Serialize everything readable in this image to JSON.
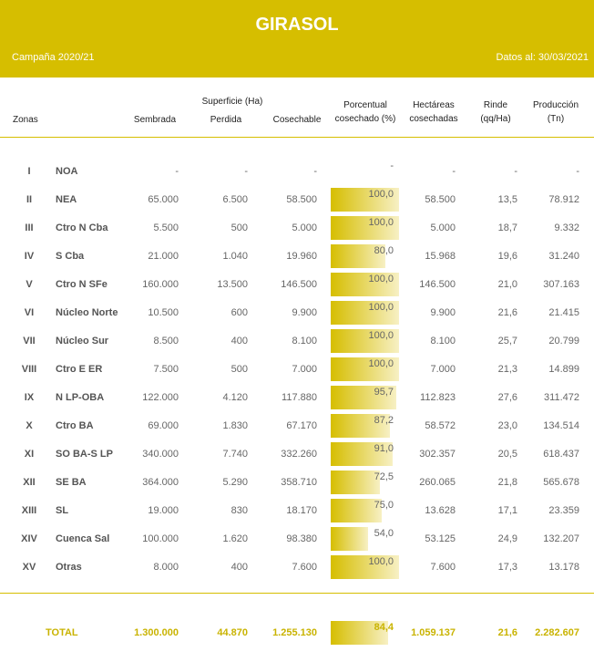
{
  "header": {
    "title": "GIRASOL",
    "campaign": "Campaña 2020/21",
    "date": "Datos al: 30/03/2021"
  },
  "table": {
    "group_header": "Superficie (Ha)",
    "columns": [
      "Zonas",
      "Sembrada",
      "Perdida",
      "Cosechable",
      "Porcentual cosechado (%)",
      "Hectáreas cosechadas",
      "Rinde (qq/Ha)",
      "Producción (Tn)"
    ],
    "rows": [
      [
        "I",
        "NOA",
        "-",
        "-",
        "-",
        "-",
        "-",
        "-",
        "-"
      ],
      [
        "II",
        "NEA",
        "65.000",
        "6.500",
        "58.500",
        "100,0",
        "58.500",
        "13,5",
        "78.912"
      ],
      [
        "III",
        "Ctro N Cba",
        "5.500",
        "500",
        "5.000",
        "100,0",
        "5.000",
        "18,7",
        "9.332"
      ],
      [
        "IV",
        "S Cba",
        "21.000",
        "1.040",
        "19.960",
        "80,0",
        "15.968",
        "19,6",
        "31.240"
      ],
      [
        "V",
        "Ctro N SFe",
        "160.000",
        "13.500",
        "146.500",
        "100,0",
        "146.500",
        "21,0",
        "307.163"
      ],
      [
        "VI",
        "Núcleo Norte",
        "10.500",
        "600",
        "9.900",
        "100,0",
        "9.900",
        "21,6",
        "21.415"
      ],
      [
        "VII",
        "Núcleo Sur",
        "8.500",
        "400",
        "8.100",
        "100,0",
        "8.100",
        "25,7",
        "20.799"
      ],
      [
        "VIII",
        "Ctro E ER",
        "7.500",
        "500",
        "7.000",
        "100,0",
        "7.000",
        "21,3",
        "14.899"
      ],
      [
        "IX",
        "N LP-OBA",
        "122.000",
        "4.120",
        "117.880",
        "95,7",
        "112.823",
        "27,6",
        "311.472"
      ],
      [
        "X",
        "Ctro BA",
        "69.000",
        "1.830",
        "67.170",
        "87,2",
        "58.572",
        "23,0",
        "134.514"
      ],
      [
        "XI",
        "SO BA-S LP",
        "340.000",
        "7.740",
        "332.260",
        "91,0",
        "302.357",
        "20,5",
        "618.437"
      ],
      [
        "XII",
        "SE BA",
        "364.000",
        "5.290",
        "358.710",
        "72,5",
        "260.065",
        "21,8",
        "565.678"
      ],
      [
        "XIII",
        "SL",
        "19.000",
        "830",
        "18.170",
        "75,0",
        "13.628",
        "17,1",
        "23.359"
      ],
      [
        "XIV",
        "Cuenca Sal",
        "100.000",
        "1.620",
        "98.380",
        "54,0",
        "53.125",
        "24,9",
        "132.207"
      ],
      [
        "XV",
        "Otras",
        "8.000",
        "400",
        "7.600",
        "100,0",
        "7.600",
        "17,3",
        "13.178"
      ]
    ],
    "total": [
      "TOTAL",
      "1.300.000",
      "44.870",
      "1.255.130",
      "84,4",
      "1.059.137",
      "21,6",
      "2.282.607"
    ]
  }
}
